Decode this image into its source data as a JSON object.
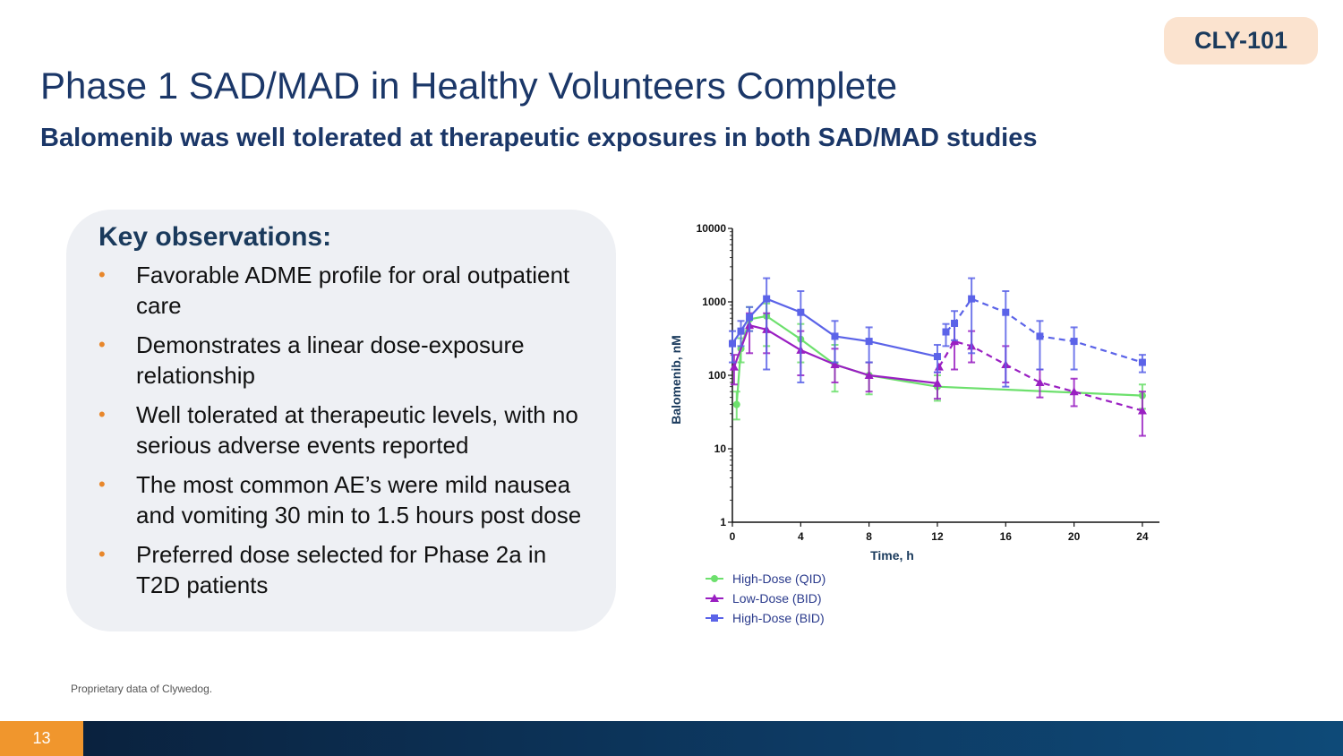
{
  "badge": "CLY-101",
  "title": "Phase 1 SAD/MAD in Healthy Volunteers Complete",
  "subtitle": "Balomenib was well tolerated at therapeutic exposures in both SAD/MAD studies",
  "panel": {
    "heading": "Key observations:",
    "bullet_symbol": "•",
    "items": [
      "Favorable ADME profile for oral outpatient care",
      "Demonstrates a linear dose-exposure relationship",
      "Well tolerated at therapeutic levels, with no serious adverse events reported",
      "The most common AE’s were mild nausea and vomiting 30 min to 1.5 hours post dose",
      "Preferred dose selected for Phase 2a in T2D patients"
    ]
  },
  "footnote": "Proprietary data of Clywedog.",
  "page_number": "13",
  "colors": {
    "accent_orange": "#f0962d",
    "navy": "#1b3768",
    "badge_bg": "#fbe3cf"
  },
  "chart_data": {
    "type": "line",
    "title": "",
    "xlabel": "Time, h",
    "ylabel": "Balomenib, nM",
    "xlim": [
      0,
      25
    ],
    "ylim": [
      1,
      10000
    ],
    "yscale": "log",
    "xticks": [
      0,
      4,
      8,
      12,
      16,
      20,
      24
    ],
    "yticks": [
      1,
      10,
      100,
      1000,
      10000
    ],
    "legend_position": "bottom-left",
    "series": [
      {
        "name": "High-Dose (QID)",
        "color": "#6de06d",
        "marker": "circle",
        "segments": [
          {
            "style": "solid",
            "x": [
              0.25,
              0.5,
              1,
              2,
              4,
              6,
              8,
              12,
              24
            ],
            "y": [
              40,
              230,
              580,
              640,
              310,
              140,
              100,
              70,
              53
            ]
          }
        ],
        "error": [
          {
            "x": 0.25,
            "lo": 25,
            "hi": 60
          },
          {
            "x": 0.5,
            "lo": 150,
            "hi": 320
          },
          {
            "x": 1,
            "lo": 400,
            "hi": 850
          },
          {
            "x": 2,
            "lo": 250,
            "hi": 950
          },
          {
            "x": 4,
            "lo": 150,
            "hi": 500
          },
          {
            "x": 6,
            "lo": 60,
            "hi": 260
          },
          {
            "x": 8,
            "lo": 55,
            "hi": 150
          },
          {
            "x": 12,
            "lo": 45,
            "hi": 100
          },
          {
            "x": 24,
            "lo": 35,
            "hi": 75
          }
        ]
      },
      {
        "name": "Low-Dose (BID)",
        "color": "#9a1fc2",
        "marker": "triangle",
        "segments": [
          {
            "style": "solid",
            "x": [
              0.1,
              1,
              2,
              4,
              6,
              8,
              12
            ],
            "y": [
              130,
              480,
              420,
              220,
              140,
              100,
              78
            ]
          },
          {
            "style": "dashed",
            "x": [
              12.1,
              13,
              14,
              16,
              18,
              20,
              24
            ],
            "y": [
              130,
              290,
              250,
              140,
              80,
              60,
              33
            ]
          }
        ],
        "error": [
          {
            "x": 0.1,
            "lo": 75,
            "hi": 190
          },
          {
            "x": 1,
            "lo": 200,
            "hi": 700
          },
          {
            "x": 2,
            "lo": 200,
            "hi": 700
          },
          {
            "x": 4,
            "lo": 100,
            "hi": 400
          },
          {
            "x": 6,
            "lo": 80,
            "hi": 230
          },
          {
            "x": 8,
            "lo": 60,
            "hi": 150
          },
          {
            "x": 12,
            "lo": 48,
            "hi": 110
          },
          {
            "x": 13,
            "lo": 120,
            "hi": 500
          },
          {
            "x": 14,
            "lo": 150,
            "hi": 400
          },
          {
            "x": 16,
            "lo": 80,
            "hi": 250
          },
          {
            "x": 18,
            "lo": 50,
            "hi": 120
          },
          {
            "x": 20,
            "lo": 38,
            "hi": 90
          },
          {
            "x": 24,
            "lo": 15,
            "hi": 60
          }
        ]
      },
      {
        "name": "High-Dose (BID)",
        "color": "#5b63e8",
        "marker": "square",
        "segments": [
          {
            "style": "solid",
            "x": [
              0,
              0.5,
              1,
              2,
              4,
              6,
              8,
              12
            ],
            "y": [
              270,
              400,
              620,
              1100,
              720,
              340,
              290,
              180
            ]
          },
          {
            "style": "dashed",
            "x": [
              12.5,
              13,
              14,
              16,
              18,
              20,
              24
            ],
            "y": [
              390,
              510,
              1100,
              720,
              340,
              290,
              150
            ]
          }
        ],
        "error": [
          {
            "x": 0,
            "lo": 150,
            "hi": 400
          },
          {
            "x": 0.5,
            "lo": 250,
            "hi": 550
          },
          {
            "x": 1,
            "lo": 400,
            "hi": 850
          },
          {
            "x": 2,
            "lo": 120,
            "hi": 2100
          },
          {
            "x": 4,
            "lo": 80,
            "hi": 1400
          },
          {
            "x": 6,
            "lo": 150,
            "hi": 550
          },
          {
            "x": 8,
            "lo": 150,
            "hi": 450
          },
          {
            "x": 12,
            "lo": 110,
            "hi": 260
          },
          {
            "x": 12.5,
            "lo": 250,
            "hi": 500
          },
          {
            "x": 13,
            "lo": 300,
            "hi": 750
          },
          {
            "x": 14,
            "lo": 200,
            "hi": 2100
          },
          {
            "x": 16,
            "lo": 70,
            "hi": 1400
          },
          {
            "x": 18,
            "lo": 120,
            "hi": 550
          },
          {
            "x": 20,
            "lo": 120,
            "hi": 450
          },
          {
            "x": 24,
            "lo": 110,
            "hi": 190
          }
        ]
      }
    ]
  }
}
